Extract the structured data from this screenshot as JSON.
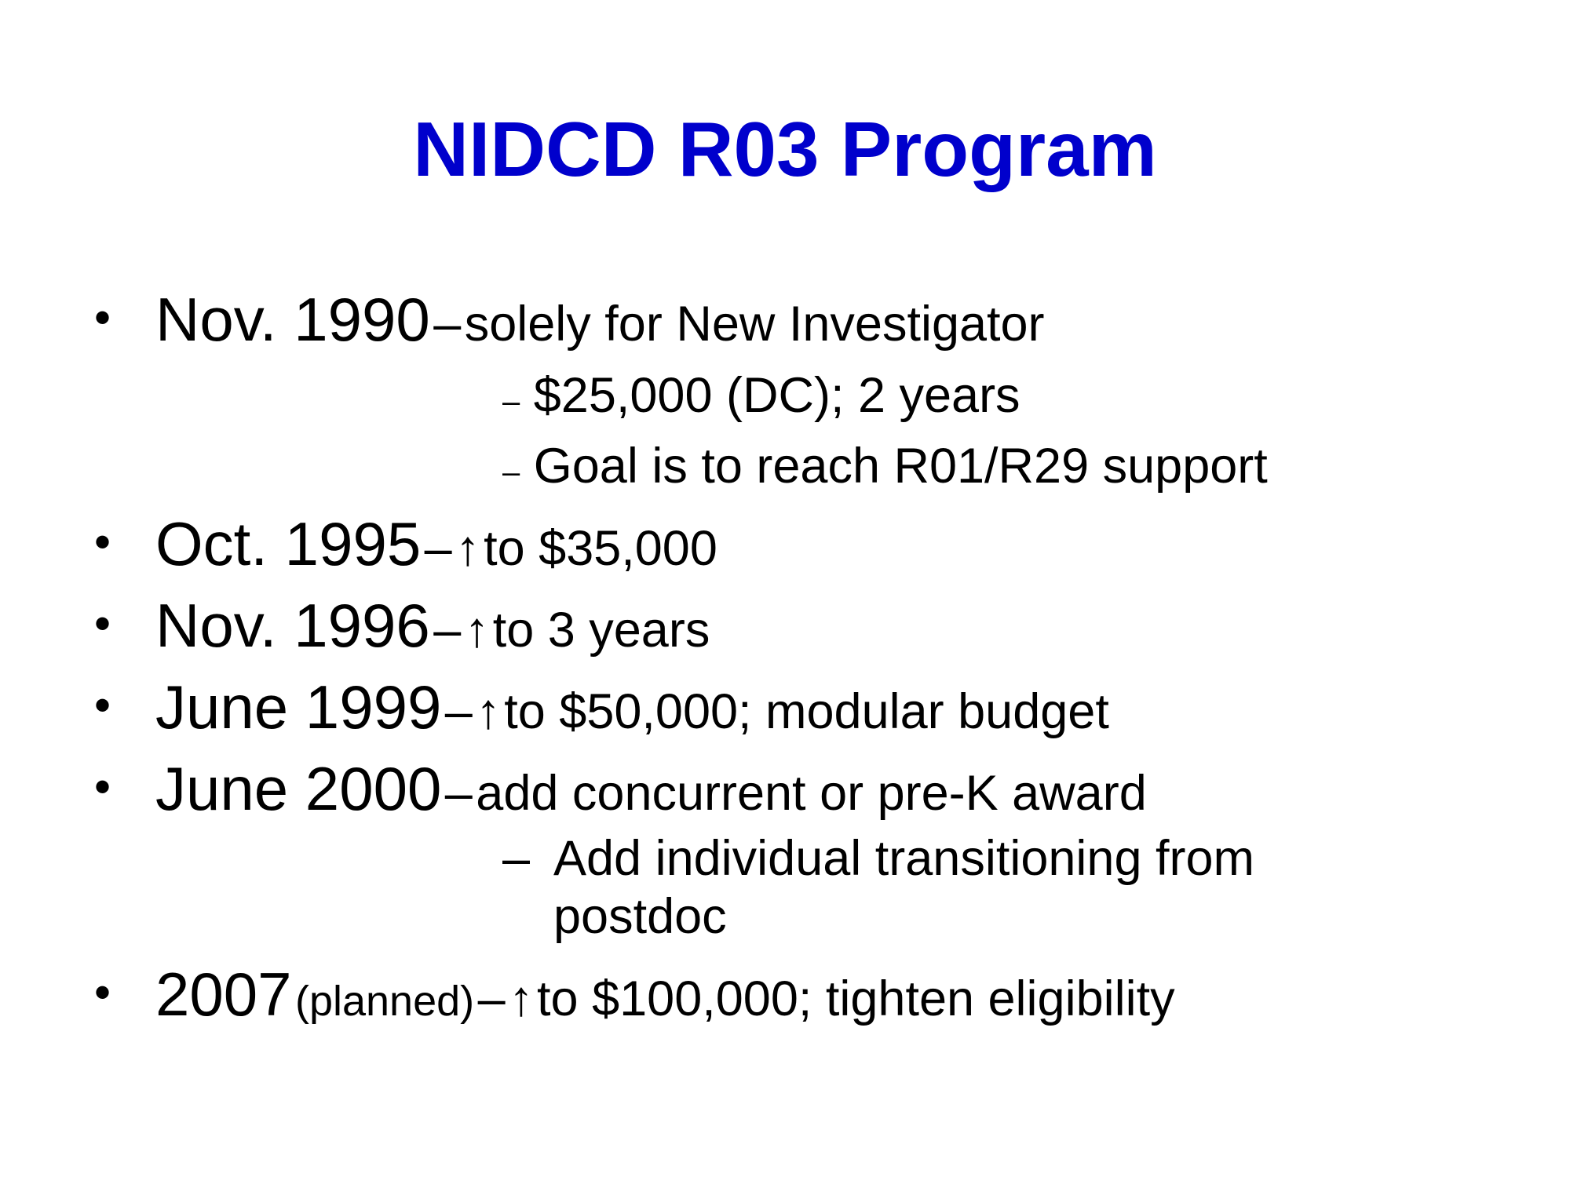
{
  "slide": {
    "title": "NIDCD R03 Program",
    "title_color": "#0000cc",
    "bullet_symbol": "•",
    "items": [
      {
        "date": "Nov. 1990",
        "sep": "–",
        "text": "solely for New Investigator",
        "subitems": [
          {
            "dash": "–",
            "text": "$25,000 (DC); 2 years"
          },
          {
            "dash": "–",
            "text": "Goal is to reach R01/R29 support"
          }
        ]
      },
      {
        "date": "Oct. 1995",
        "sep": "–",
        "arrow": "↑",
        "text": "to $35,000"
      },
      {
        "date": "Nov. 1996",
        "sep": "–",
        "arrow": "↑",
        "text": "to 3 years"
      },
      {
        "date": "June 1999",
        "sep": "–",
        "arrow": "↑",
        "text": "to $50,000; modular budget"
      },
      {
        "date": "June 2000",
        "sep": "–",
        "text": "add concurrent or pre-K award",
        "subitems": [
          {
            "dash": "–",
            "line1": "Add individual transitioning from",
            "line2": "postdoc"
          }
        ]
      },
      {
        "date": "2007",
        "qualifier": "(planned)",
        "sep": "–",
        "arrow": "↑",
        "text": "to $100,000; tighten eligibility"
      }
    ]
  }
}
